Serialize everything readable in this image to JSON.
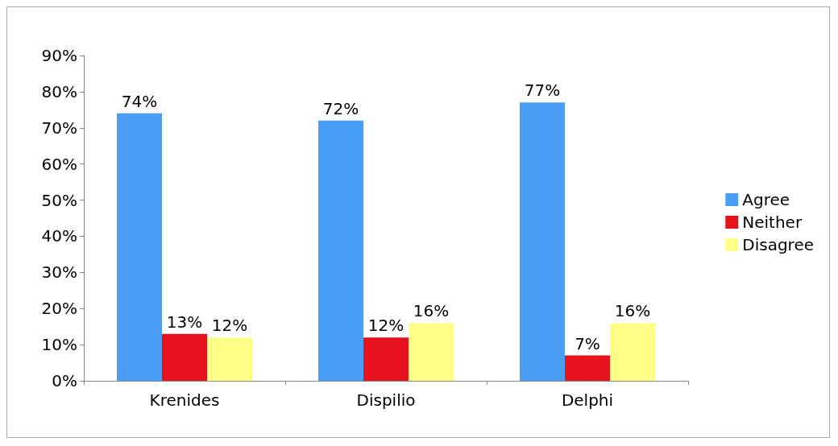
{
  "chart_data": {
    "type": "bar",
    "categories": [
      "Krenides",
      "Dispilio",
      "Delphi"
    ],
    "series": [
      {
        "name": "Agree",
        "color": "#4a9ff5",
        "values": [
          74,
          72,
          77
        ],
        "value_labels": [
          "74%",
          "72%",
          "77%"
        ]
      },
      {
        "name": "Neither",
        "color": "#e8121e",
        "values": [
          13,
          12,
          7
        ],
        "value_labels": [
          "13%",
          "12%",
          "7%"
        ]
      },
      {
        "name": "Disagree",
        "color": "#ffff88",
        "values": [
          12,
          16,
          16
        ],
        "value_labels": [
          "12%",
          "16%",
          "16%"
        ]
      }
    ],
    "ylim": [
      0,
      90
    ],
    "yticks": [
      {
        "value": 0,
        "label": "0%"
      },
      {
        "value": 10,
        "label": "10%"
      },
      {
        "value": 20,
        "label": "20%"
      },
      {
        "value": 30,
        "label": "30%"
      },
      {
        "value": 40,
        "label": "40%"
      },
      {
        "value": 50,
        "label": "50%"
      },
      {
        "value": 60,
        "label": "60%"
      },
      {
        "value": 70,
        "label": "70%"
      },
      {
        "value": 80,
        "label": "80%"
      },
      {
        "value": 90,
        "label": "90%"
      }
    ],
    "grid": false,
    "legend": "right"
  }
}
